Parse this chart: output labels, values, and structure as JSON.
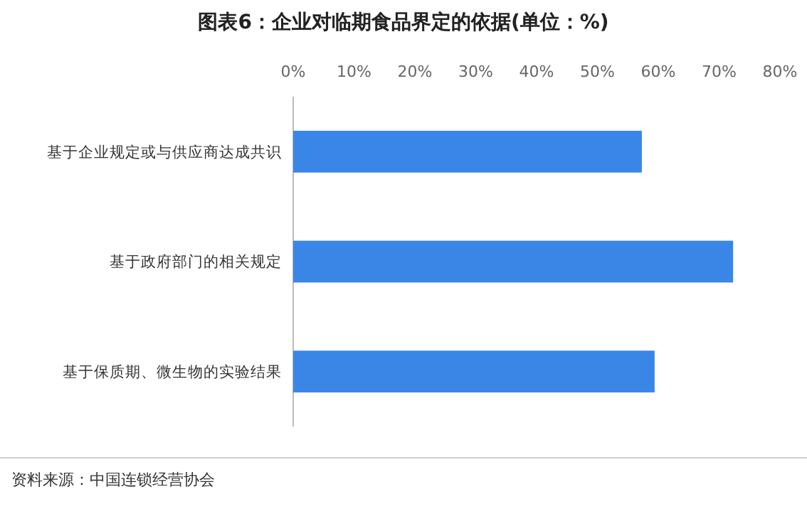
{
  "chart_data": {
    "type": "bar",
    "orientation": "horizontal",
    "title": "图表6：企业对临期食品界定的依据(单位：%)",
    "categories": [
      "基于企业规定或与供应商达成共识",
      "基于政府部门的相关规定",
      "基于保质期、微生物的实验结果"
    ],
    "values": [
      57.3,
      72.3,
      59.4
    ],
    "color": "#3a86e6",
    "xlim": [
      0,
      80
    ],
    "xticks": [
      {
        "value": 0,
        "label": "0%"
      },
      {
        "value": 10,
        "label": "10%"
      },
      {
        "value": 20,
        "label": "20%"
      },
      {
        "value": 30,
        "label": "30%"
      },
      {
        "value": 40,
        "label": "40%"
      },
      {
        "value": 50,
        "label": "50%"
      },
      {
        "value": 60,
        "label": "60%"
      },
      {
        "value": 70,
        "label": "70%"
      },
      {
        "value": 80,
        "label": "80%"
      }
    ],
    "grid": false,
    "annotations": [
      "资料来源：中国连锁经营协会"
    ]
  }
}
